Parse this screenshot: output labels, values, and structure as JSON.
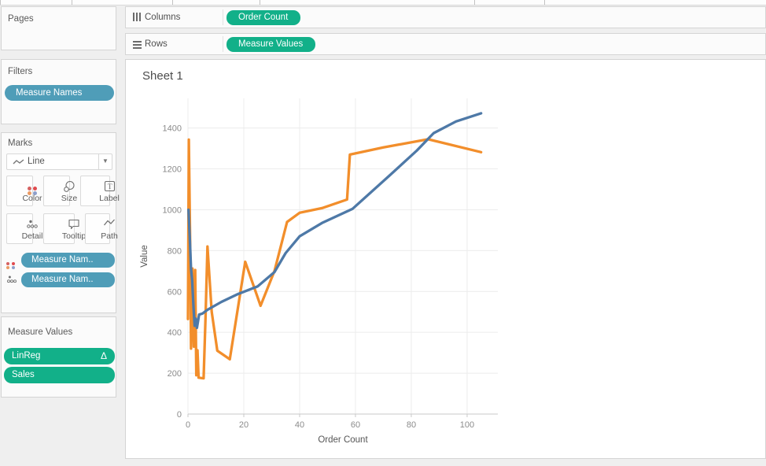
{
  "shelves": {
    "columns": {
      "label": "Columns",
      "pills": [
        {
          "label": "Order Count"
        }
      ]
    },
    "rows": {
      "label": "Rows",
      "pills": [
        {
          "label": "Measure Values"
        }
      ]
    }
  },
  "cards": {
    "pages": {
      "title": "Pages"
    },
    "filters": {
      "title": "Filters",
      "pills": [
        {
          "label": "Measure Names"
        }
      ]
    },
    "marks": {
      "title": "Marks",
      "mark_type_selector": {
        "value": "Line"
      },
      "buttons": [
        {
          "label": "Color"
        },
        {
          "label": "Size"
        },
        {
          "label": "Label"
        },
        {
          "label": "Detail"
        },
        {
          "label": "Tooltip"
        },
        {
          "label": "Path"
        }
      ],
      "pills": [
        {
          "label": "Measure Nam.."
        },
        {
          "label": "Measure Nam.."
        }
      ]
    },
    "measure_values": {
      "title": "Measure Values",
      "pills": [
        {
          "label": "LinReg",
          "badge": "Δ"
        },
        {
          "label": "Sales",
          "badge": ""
        }
      ]
    }
  },
  "sheet": {
    "title": "Sheet 1"
  },
  "chart_data": {
    "type": "line",
    "title": "Sheet 1",
    "xlabel": "Order Count",
    "ylabel": "Value",
    "xlim": [
      0,
      111
    ],
    "ylim": [
      0,
      1545
    ],
    "x_ticks": [
      0,
      20,
      40,
      60,
      80,
      100
    ],
    "y_ticks": [
      0,
      200,
      400,
      600,
      800,
      1000,
      1200,
      1400
    ],
    "grid": true,
    "legend": "none",
    "series": [
      {
        "name": "LinReg",
        "color": "#4e79a7",
        "points": [
          [
            0.2,
            1000
          ],
          [
            0.7,
            845
          ],
          [
            1.1,
            710
          ],
          [
            1.5,
            655
          ],
          [
            2,
            520
          ],
          [
            2.4,
            432
          ],
          [
            2.8,
            467
          ],
          [
            3.2,
            422
          ],
          [
            4,
            487
          ],
          [
            5.2,
            492
          ],
          [
            7,
            510
          ],
          [
            12,
            549
          ],
          [
            18,
            588
          ],
          [
            25,
            625
          ],
          [
            31,
            695
          ],
          [
            35,
            788
          ],
          [
            40,
            870
          ],
          [
            48,
            935
          ],
          [
            59,
            1005
          ],
          [
            72,
            1165
          ],
          [
            82,
            1290
          ],
          [
            88,
            1375
          ],
          [
            96,
            1432
          ],
          [
            105,
            1472
          ]
        ]
      },
      {
        "name": "Sales",
        "color": "#f28e2b",
        "points": [
          [
            0,
            465
          ],
          [
            0.3,
            1343
          ],
          [
            0.9,
            700
          ],
          [
            1.1,
            320
          ],
          [
            1.6,
            712
          ],
          [
            2.1,
            330
          ],
          [
            2.6,
            705
          ],
          [
            3,
            190
          ],
          [
            3.4,
            312
          ],
          [
            3.8,
            178
          ],
          [
            5.6,
            175
          ],
          [
            6.3,
            480
          ],
          [
            7,
            820
          ],
          [
            8.5,
            500
          ],
          [
            10.5,
            310
          ],
          [
            15,
            268
          ],
          [
            20.5,
            745
          ],
          [
            26,
            530
          ],
          [
            31,
            700
          ],
          [
            35.5,
            940
          ],
          [
            40,
            985
          ],
          [
            48,
            1008
          ],
          [
            57,
            1050
          ],
          [
            58,
            1270
          ],
          [
            70,
            1305
          ],
          [
            86,
            1345
          ],
          [
            105,
            1282
          ]
        ]
      }
    ]
  },
  "colors": {
    "measure_pill_green": "#12b089",
    "dimension_pill_blue": "#4f9db8",
    "linreg_line": "#4e79a7",
    "sales_line": "#f28e2b"
  }
}
